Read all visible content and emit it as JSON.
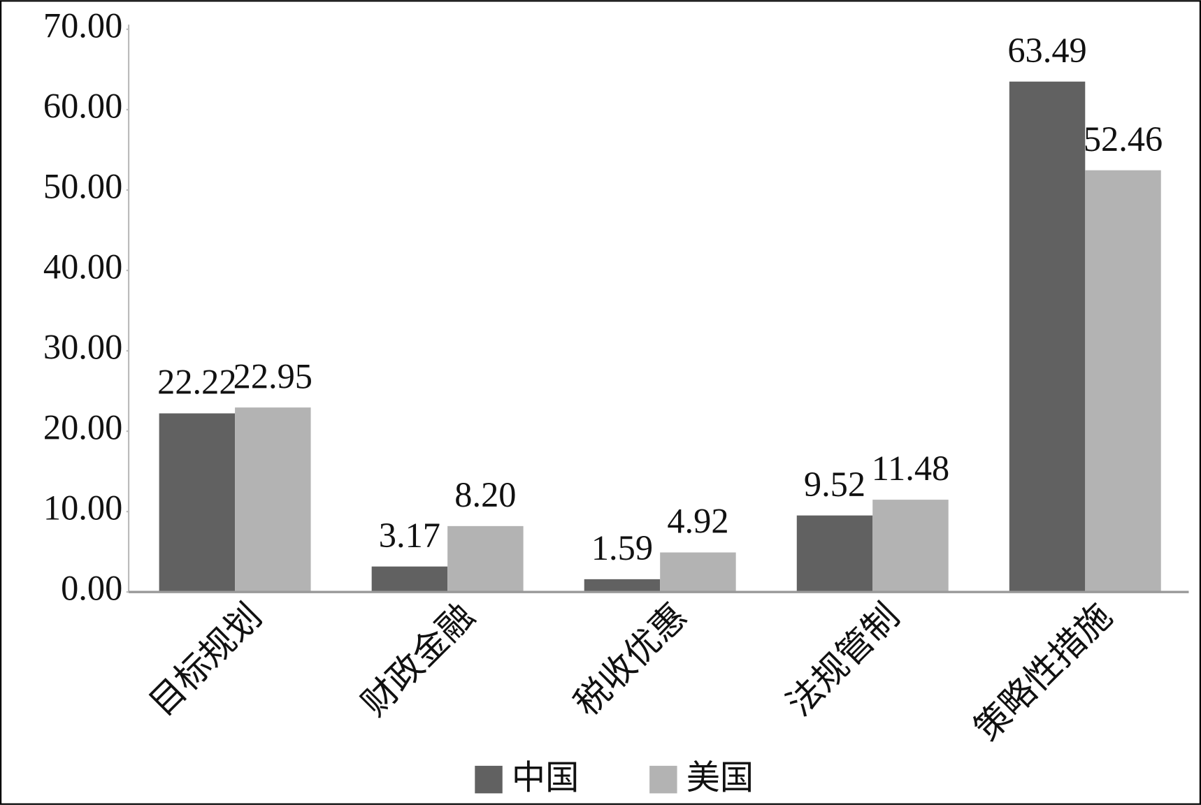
{
  "chart_data": {
    "type": "bar",
    "categories": [
      "目标规划",
      "财政金融",
      "税收优惠",
      "法规管制",
      "策略性措施"
    ],
    "series": [
      {
        "name": "中国",
        "color": "#616161",
        "values": [
          22.22,
          3.17,
          1.59,
          9.52,
          63.49
        ],
        "value_labels": [
          "22.22",
          "3.17",
          "1.59",
          "9.52",
          "63.49"
        ]
      },
      {
        "name": "美国",
        "color": "#b3b3b3",
        "values": [
          22.95,
          8.2,
          4.92,
          11.48,
          52.46
        ],
        "value_labels": [
          "22.95",
          "8.20",
          "4.92",
          "11.48",
          "52.46"
        ]
      }
    ],
    "ylim": [
      0,
      70
    ],
    "yticks": [
      {
        "value": 0,
        "label": "0.00"
      },
      {
        "value": 10,
        "label": "10.00"
      },
      {
        "value": 20,
        "label": "20.00"
      },
      {
        "value": 30,
        "label": "30.00"
      },
      {
        "value": 40,
        "label": "40.00"
      },
      {
        "value": 50,
        "label": "50.00"
      },
      {
        "value": 60,
        "label": "60.00"
      },
      {
        "value": 70,
        "label": "70.00"
      }
    ],
    "grid": false,
    "legend": "bottom"
  }
}
